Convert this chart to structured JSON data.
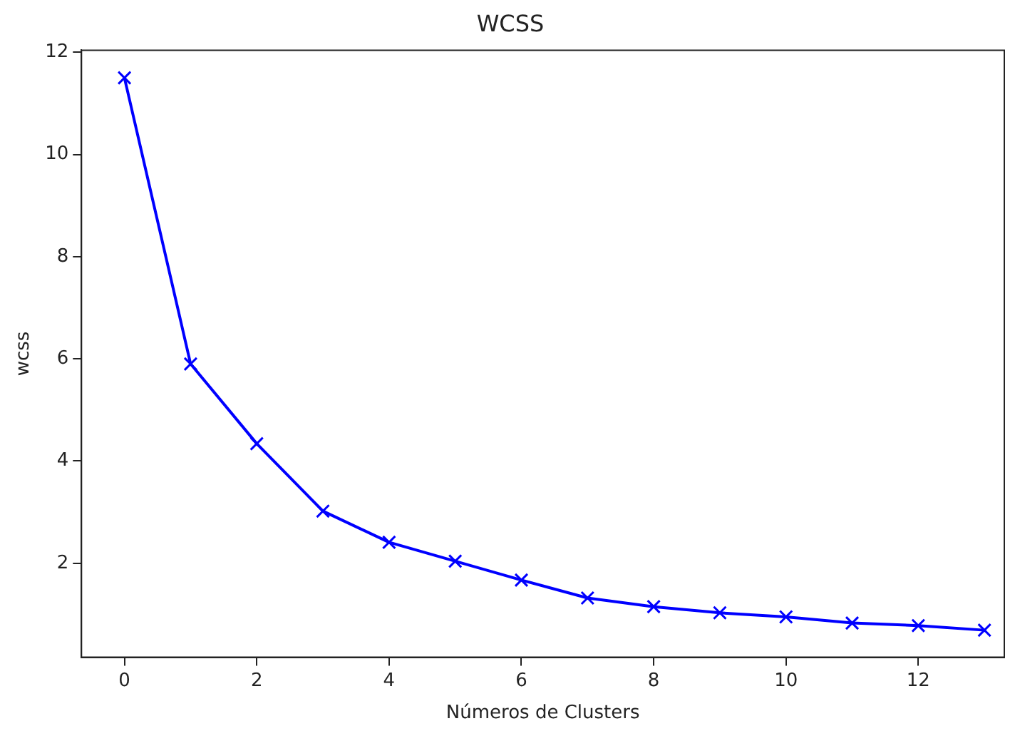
{
  "chart_data": {
    "type": "line",
    "title": "WCSS",
    "xlabel": "Números de Clusters",
    "ylabel": "wcss",
    "x": [
      0,
      1,
      2,
      3,
      4,
      5,
      6,
      7,
      8,
      9,
      10,
      11,
      12,
      13
    ],
    "series": [
      {
        "color": "#0000ff",
        "values": [
          11.5,
          5.9,
          4.34,
          3.02,
          2.41,
          2.04,
          1.67,
          1.32,
          1.15,
          1.03,
          0.95,
          0.83,
          0.78,
          0.69
        ]
      }
    ],
    "xlim": [
      -0.65,
      13.3
    ],
    "ylim": [
      0.16,
      12.04
    ],
    "xticks": [
      0,
      2,
      4,
      6,
      8,
      10,
      12
    ],
    "yticks": [
      2,
      4,
      6,
      8,
      10,
      12
    ],
    "grid": false,
    "legend": false,
    "marker": "cross",
    "line_style": "solid"
  }
}
